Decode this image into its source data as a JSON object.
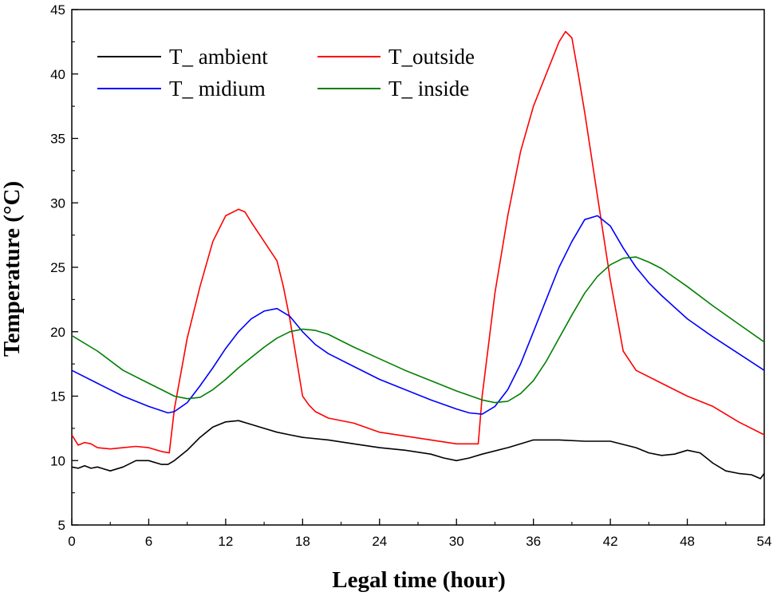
{
  "chart_data": {
    "type": "line",
    "title": "",
    "xlabel": "Legal time (hour)",
    "ylabel": "Temperature (°C)",
    "xlim": [
      0,
      54
    ],
    "ylim": [
      5,
      45
    ],
    "xticks": [
      0,
      6,
      12,
      18,
      24,
      30,
      36,
      42,
      48,
      54
    ],
    "yticks": [
      5,
      10,
      15,
      20,
      25,
      30,
      35,
      40,
      45
    ],
    "xtick_labels": [
      "0",
      "6",
      "12",
      "18",
      "24",
      "30",
      "36",
      "42",
      "48",
      "54"
    ],
    "ytick_labels": [
      "5",
      "10",
      "15",
      "20",
      "25",
      "30",
      "35",
      "40",
      "45"
    ],
    "grid": false,
    "legend_position": "top-left",
    "series": [
      {
        "name": "T_ ambient",
        "color": "#000000",
        "x": [
          0,
          0.5,
          1,
          1.5,
          2,
          3,
          4,
          5,
          6,
          7,
          7.5,
          8,
          9,
          10,
          11,
          12,
          13,
          14,
          15,
          16,
          17,
          18,
          20,
          22,
          24,
          26,
          28,
          29,
          30,
          31,
          32,
          34,
          36,
          38,
          40,
          42,
          44,
          45,
          46,
          47,
          48,
          49,
          50,
          51,
          52,
          53,
          53.7,
          54
        ],
        "values": [
          9.5,
          9.4,
          9.6,
          9.4,
          9.5,
          9.2,
          9.5,
          10.0,
          10.0,
          9.7,
          9.7,
          10.0,
          10.8,
          11.8,
          12.6,
          13.0,
          13.1,
          12.8,
          12.5,
          12.2,
          12.0,
          11.8,
          11.6,
          11.3,
          11.0,
          10.8,
          10.5,
          10.2,
          10.0,
          10.2,
          10.5,
          11.0,
          11.6,
          11.6,
          11.5,
          11.5,
          11.0,
          10.6,
          10.4,
          10.5,
          10.8,
          10.6,
          9.8,
          9.2,
          9.0,
          8.9,
          8.6,
          9.0
        ]
      },
      {
        "name": "T_outside",
        "color": "#ff0000",
        "x": [
          0,
          0.5,
          1,
          1.5,
          2,
          3,
          4,
          5,
          6,
          7,
          7.6,
          8,
          9,
          10,
          11,
          12,
          13,
          13.5,
          14,
          15,
          16,
          16.5,
          17,
          17.5,
          18,
          18.5,
          19,
          20,
          22,
          24,
          26,
          28,
          30,
          31.7,
          32,
          33,
          34,
          35,
          36,
          37,
          38,
          38.5,
          39,
          39.5,
          40,
          41,
          42,
          43,
          44,
          46,
          48,
          50,
          52,
          54
        ],
        "values": [
          12.0,
          11.2,
          11.4,
          11.3,
          11.0,
          10.9,
          11.0,
          11.1,
          11.0,
          10.7,
          10.6,
          14.0,
          19.5,
          23.5,
          27.0,
          29.0,
          29.5,
          29.3,
          28.5,
          27.0,
          25.5,
          23.5,
          21.0,
          18.0,
          15.0,
          14.3,
          13.8,
          13.3,
          12.9,
          12.2,
          11.9,
          11.6,
          11.3,
          11.3,
          15.0,
          23.0,
          29.0,
          34.0,
          37.5,
          40.0,
          42.5,
          43.3,
          42.8,
          40.0,
          37.0,
          30.5,
          24.0,
          18.5,
          17.0,
          16.0,
          15.0,
          14.2,
          13.0,
          12.0
        ]
      },
      {
        "name": "T_ midium",
        "color": "#0000ff",
        "x": [
          0,
          2,
          4,
          6,
          7.5,
          8,
          9,
          10,
          11,
          12,
          13,
          14,
          15,
          16,
          17,
          18,
          19,
          20,
          22,
          24,
          26,
          28,
          30,
          31,
          32,
          33,
          34,
          35,
          36,
          37,
          38,
          39,
          40,
          41,
          42,
          43,
          44,
          45,
          46,
          48,
          50,
          52,
          54
        ],
        "values": [
          17.0,
          16.0,
          15.0,
          14.2,
          13.7,
          13.8,
          14.5,
          15.8,
          17.2,
          18.7,
          20.0,
          21.0,
          21.6,
          21.8,
          21.2,
          20.0,
          19.0,
          18.3,
          17.3,
          16.3,
          15.5,
          14.7,
          14.0,
          13.7,
          13.6,
          14.2,
          15.5,
          17.5,
          20.0,
          22.5,
          25.0,
          27.0,
          28.7,
          29.0,
          28.2,
          26.5,
          25.0,
          23.8,
          22.8,
          21.0,
          19.6,
          18.3,
          17.0
        ]
      },
      {
        "name": "T_ inside",
        "color": "#008000",
        "x": [
          0,
          2,
          4,
          6,
          7,
          8,
          9,
          10,
          11,
          12,
          13,
          14,
          15,
          16,
          17,
          18,
          19,
          20,
          21,
          22,
          24,
          26,
          28,
          30,
          32,
          33,
          34,
          35,
          36,
          37,
          38,
          39,
          40,
          41,
          42,
          43,
          44,
          45,
          46,
          48,
          50,
          52,
          54
        ],
        "values": [
          19.7,
          18.5,
          17.0,
          16.0,
          15.5,
          15.0,
          14.8,
          14.9,
          15.5,
          16.3,
          17.2,
          18.0,
          18.8,
          19.5,
          20.0,
          20.2,
          20.1,
          19.8,
          19.3,
          18.8,
          17.9,
          17.0,
          16.2,
          15.4,
          14.7,
          14.5,
          14.6,
          15.2,
          16.2,
          17.7,
          19.5,
          21.3,
          23.0,
          24.3,
          25.2,
          25.7,
          25.8,
          25.4,
          24.9,
          23.5,
          22.0,
          20.6,
          19.2
        ]
      }
    ]
  }
}
